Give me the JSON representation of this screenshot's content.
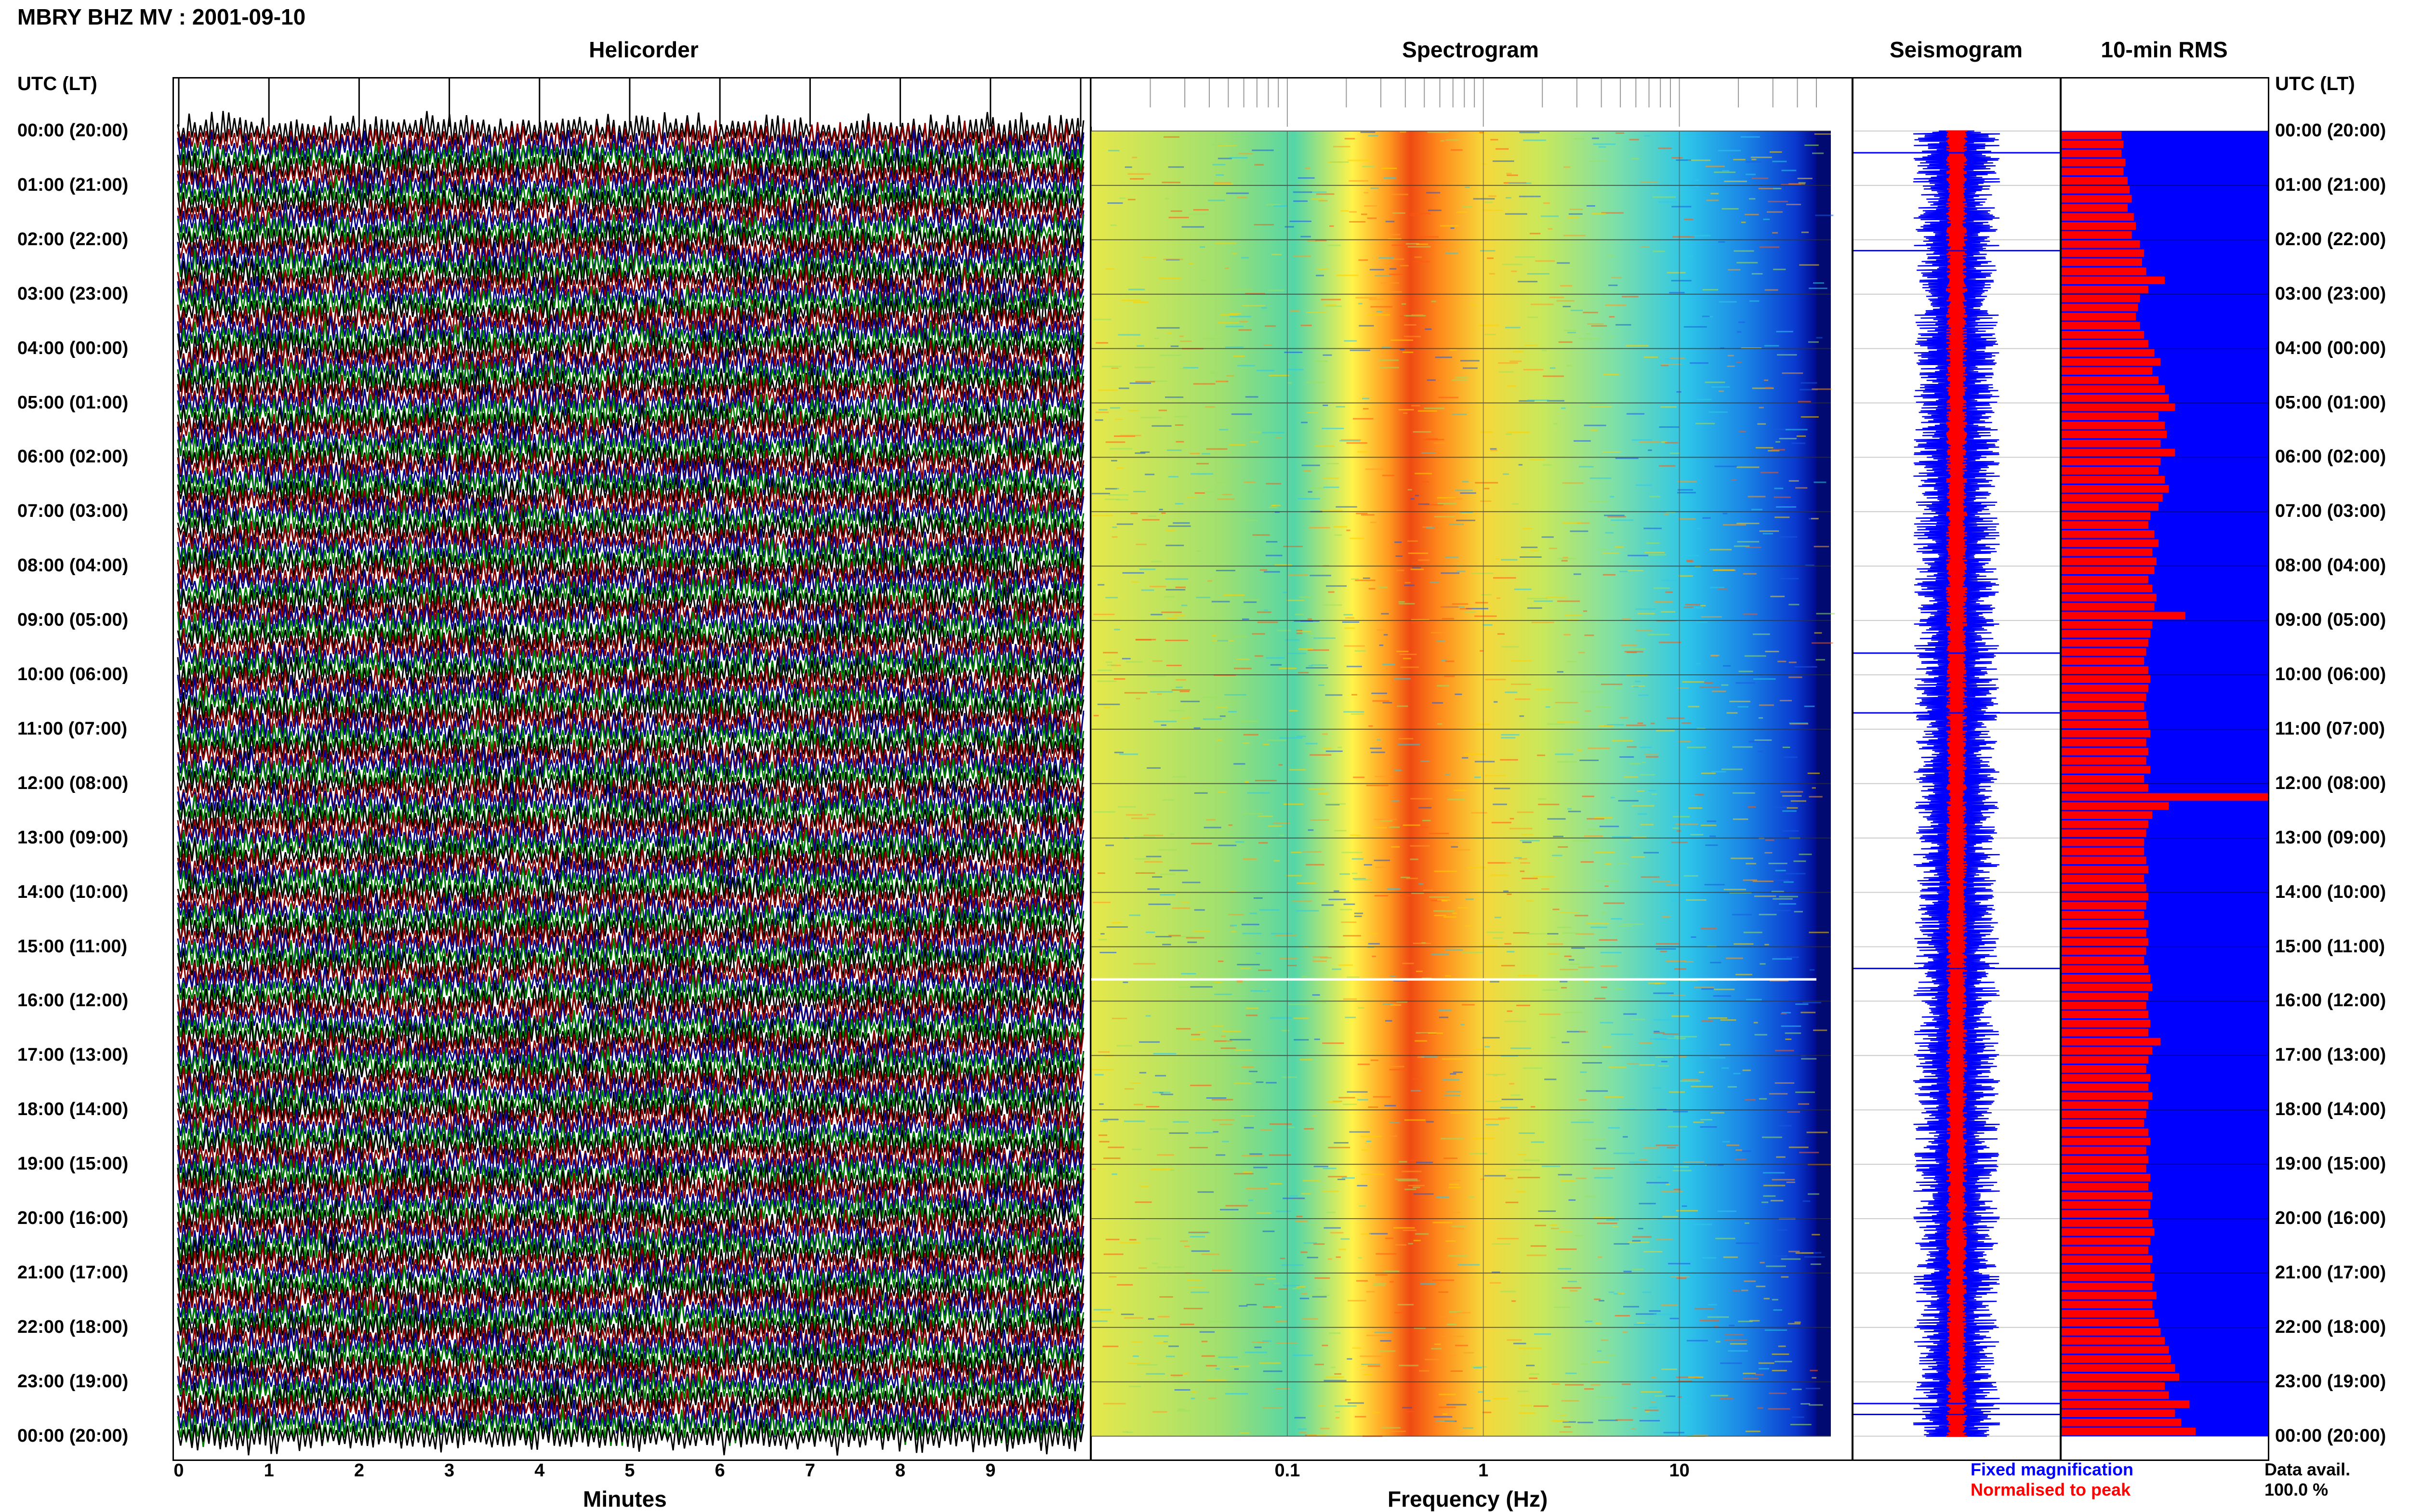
{
  "header": {
    "title": "MBRY BHZ MV : 2001-09-10"
  },
  "panels": {
    "helicorder": "Helicorder",
    "spectrogram": "Spectrogram",
    "seismogram": "Seismogram",
    "rms": "10-min RMS"
  },
  "axis": {
    "time_left_label": "UTC (LT)",
    "time_right_label": "UTC (LT)",
    "minutes_label": "Minutes",
    "frequency_label": "Frequency (Hz)"
  },
  "legend": {
    "fixed": "Fixed magnification",
    "normalised": "Normalised to peak",
    "data_avail_label": "Data avail.",
    "data_avail_value": "100.0 %"
  },
  "colors": {
    "trace_black": "#000000",
    "trace_red": "#8b0000",
    "trace_blue": "#00008b",
    "trace_green": "#008000",
    "seis_blue": "#0000ff",
    "seis_red": "#ff0000",
    "rms_bg": "#0000ff",
    "rms_bar": "#ff0000"
  },
  "chart_data": [
    {
      "type": "line",
      "title": "Helicorder",
      "xlabel": "Minutes",
      "ylabel": "UTC (LT)",
      "xticks": [
        "0",
        "1",
        "2",
        "3",
        "4",
        "5",
        "6",
        "7",
        "8",
        "9"
      ],
      "xlim": [
        0,
        10
      ],
      "row_labels": [
        "00:00 (20:00)",
        "01:00 (21:00)",
        "02:00 (22:00)",
        "03:00 (23:00)",
        "04:00 (00:00)",
        "05:00 (01:00)",
        "06:00 (02:00)",
        "07:00 (03:00)",
        "08:00 (04:00)",
        "09:00 (05:00)",
        "10:00 (06:00)",
        "11:00 (07:00)",
        "12:00 (08:00)",
        "13:00 (09:00)",
        "14:00 (10:00)",
        "15:00 (11:00)",
        "16:00 (12:00)",
        "17:00 (13:00)",
        "18:00 (14:00)",
        "19:00 (15:00)",
        "20:00 (16:00)",
        "21:00 (17:00)",
        "22:00 (18:00)",
        "23:00 (19:00)",
        "00:00 (20:00)"
      ],
      "rows_per_hour": 6,
      "trace_color_cycle": [
        "black",
        "red",
        "blue",
        "green"
      ]
    },
    {
      "type": "heatmap",
      "title": "Spectrogram",
      "xlabel": "Frequency (Hz)",
      "xscale": "log",
      "xlim": [
        0.01,
        50
      ],
      "xticks": [
        "0.1",
        "1",
        "10"
      ],
      "peak_band_hz": [
        0.2,
        0.5
      ]
    },
    {
      "type": "line",
      "title": "Seismogram",
      "series": [
        {
          "name": "Fixed magnification",
          "color": "#0000ff"
        },
        {
          "name": "Normalised to peak",
          "color": "#ff0000"
        }
      ]
    },
    {
      "type": "bar",
      "title": "10-min RMS",
      "n_bars": 144,
      "values": [
        0.29,
        0.3,
        0.29,
        0.31,
        0.3,
        0.32,
        0.33,
        0.34,
        0.32,
        0.35,
        0.36,
        0.34,
        0.38,
        0.4,
        0.39,
        0.41,
        0.5,
        0.42,
        0.38,
        0.37,
        0.36,
        0.38,
        0.4,
        0.42,
        0.45,
        0.48,
        0.44,
        0.47,
        0.5,
        0.52,
        0.55,
        0.47,
        0.5,
        0.51,
        0.48,
        0.55,
        0.48,
        0.47,
        0.5,
        0.52,
        0.49,
        0.47,
        0.43,
        0.42,
        0.45,
        0.47,
        0.44,
        0.46,
        0.45,
        0.42,
        0.44,
        0.46,
        0.45,
        0.6,
        0.44,
        0.43,
        0.42,
        0.41,
        0.4,
        0.42,
        0.43,
        0.42,
        0.41,
        0.4,
        0.41,
        0.42,
        0.43,
        0.41,
        0.42,
        0.41,
        0.43,
        0.4,
        0.42,
        1.0,
        0.52,
        0.44,
        0.42,
        0.41,
        0.4,
        0.4,
        0.41,
        0.42,
        0.4,
        0.41,
        0.42,
        0.41,
        0.4,
        0.42,
        0.41,
        0.42,
        0.41,
        0.4,
        0.42,
        0.43,
        0.44,
        0.42,
        0.41,
        0.42,
        0.43,
        0.42,
        0.48,
        0.44,
        0.42,
        0.41,
        0.43,
        0.42,
        0.44,
        0.42,
        0.41,
        0.4,
        0.42,
        0.43,
        0.41,
        0.42,
        0.41,
        0.43,
        0.42,
        0.44,
        0.43,
        0.42,
        0.44,
        0.45,
        0.43,
        0.42,
        0.44,
        0.43,
        0.45,
        0.44,
        0.46,
        0.44,
        0.45,
        0.47,
        0.48,
        0.5,
        0.52,
        0.53,
        0.55,
        0.57,
        0.5,
        0.52,
        0.62,
        0.55,
        0.58,
        0.65
      ]
    }
  ]
}
